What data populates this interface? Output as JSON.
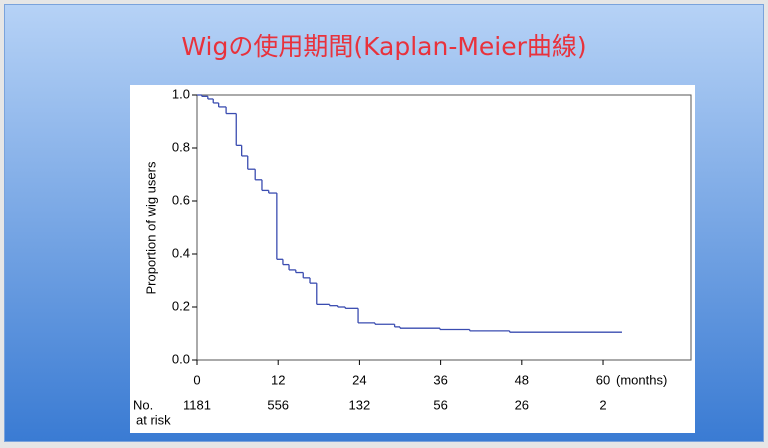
{
  "title": "Wigの使用期間(Kaplan-Meier曲線)",
  "chart_data": {
    "type": "step",
    "ylabel": "Proportion of wig users",
    "xlabel": "(months)",
    "xlim": [
      0,
      73
    ],
    "ylim": [
      0,
      1
    ],
    "xticks": [
      0,
      12,
      24,
      36,
      48,
      60
    ],
    "yticks": [
      {
        "value": 0,
        "label": "0.0"
      },
      0.2,
      0.4,
      0.6,
      0.8,
      {
        "value": 1,
        "label": "1.0"
      }
    ],
    "series": [
      {
        "color": "#3a4cb0",
        "x": [
          0,
          0.7,
          1.6,
          2.4,
          3.2,
          4.3,
          5.8,
          6.6,
          7.5,
          8.6,
          9.6,
          10.6,
          11.8,
          12.7,
          13.6,
          14.6,
          15.7,
          16.7,
          17.7,
          19.6,
          20.8,
          21.9,
          23.8,
          26.3,
          29.2,
          30,
          35.9,
          40.3,
          46.2,
          62.8
        ],
        "values": [
          1,
          0.995,
          0.985,
          0.97,
          0.955,
          0.93,
          0.81,
          0.77,
          0.72,
          0.68,
          0.64,
          0.63,
          0.38,
          0.36,
          0.34,
          0.33,
          0.31,
          0.29,
          0.21,
          0.205,
          0.2,
          0.195,
          0.14,
          0.135,
          0.125,
          0.12,
          0.115,
          0.11,
          0.105,
          0.105
        ]
      }
    ],
    "at_risk": {
      "label": [
        "No.",
        "at risk"
      ],
      "values": [
        1181,
        556,
        132,
        56,
        26,
        2
      ]
    }
  }
}
